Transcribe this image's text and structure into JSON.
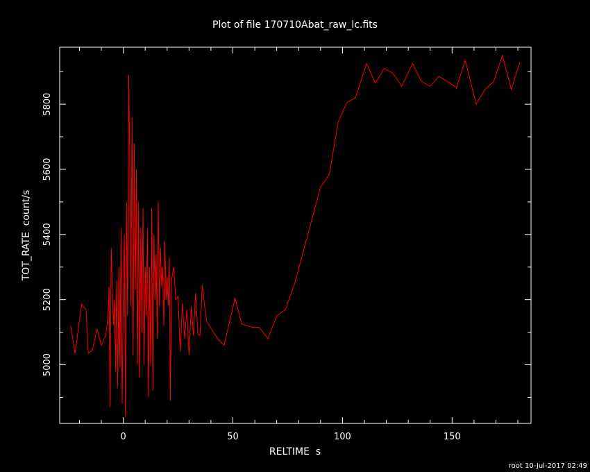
{
  "chart_data": {
    "type": "line",
    "title": "Plot of file 170710Abat_raw_lc.fits",
    "xlabel": "RELTIME  s",
    "ylabel": "TOT_RATE  count/s",
    "footer": "root 10-Jul-2017 02:49",
    "xlim": [
      -29,
      186
    ],
    "ylim": [
      4820,
      5975
    ],
    "x_ticks": [
      0,
      50,
      100,
      150
    ],
    "y_ticks": [
      5000,
      5200,
      5400,
      5600,
      5800
    ],
    "grid": false,
    "line_color": "#ff0000",
    "series": [
      {
        "x": [
          -24,
          -22,
          -19,
          -17,
          -16,
          -14,
          -12,
          -10,
          -8,
          -7,
          -6.5,
          -6,
          -5.5,
          -5,
          -4.5,
          -4,
          -3.5,
          -3,
          -2.5,
          -2,
          -1.5,
          -1,
          -0.5,
          0,
          0.5,
          1,
          1.5,
          2,
          2.5,
          3,
          3.5,
          4,
          4.5,
          5,
          5.5,
          6,
          6.5,
          7,
          7.5,
          8,
          8.5,
          9,
          9.5,
          10,
          10.5,
          11,
          11.5,
          12,
          12.5,
          13,
          13.5,
          14,
          14.5,
          15,
          15.5,
          16,
          16.5,
          17,
          17.5,
          18,
          18.5,
          19,
          19.5,
          20,
          20.5,
          21,
          21.5,
          22,
          23,
          24,
          25,
          26,
          27,
          28,
          29,
          30,
          31,
          32,
          33,
          34,
          35,
          36,
          38,
          43,
          46,
          51,
          54,
          59,
          62,
          66,
          70,
          74,
          78,
          82,
          86,
          90,
          94,
          98,
          102,
          106,
          111,
          115,
          119,
          123,
          127,
          132,
          136,
          140,
          144,
          148,
          152,
          156,
          161,
          165,
          169,
          173,
          177,
          181
        ],
        "values": [
          5120,
          5035,
          5185,
          5170,
          5035,
          5045,
          5110,
          5060,
          5090,
          5145,
          5240,
          4870,
          5360,
          5240,
          5120,
          5200,
          4980,
          5260,
          4930,
          5300,
          4990,
          5420,
          4880,
          5210,
          5400,
          4840,
          5500,
          5150,
          5890,
          5600,
          5180,
          5760,
          5030,
          5680,
          5230,
          5600,
          5000,
          5500,
          4960,
          5420,
          5100,
          5480,
          5000,
          5300,
          5150,
          5420,
          4900,
          5300,
          5000,
          5480,
          4920,
          5400,
          5200,
          5340,
          5080,
          5500,
          5180,
          5360,
          5240,
          5300,
          5120,
          5380,
          5200,
          5270,
          5180,
          5330,
          4890,
          5260,
          5300,
          5200,
          5210,
          5040,
          5190,
          5080,
          5170,
          5030,
          5180,
          5090,
          5220,
          5095,
          5090,
          5245,
          5135,
          5080,
          5060,
          5205,
          5125,
          5115,
          5115,
          5080,
          5150,
          5170,
          5245,
          5345,
          5445,
          5545,
          5585,
          5745,
          5805,
          5820,
          5925,
          5865,
          5910,
          5895,
          5855,
          5925,
          5870,
          5855,
          5885,
          5870,
          5850,
          5935,
          5800,
          5845,
          5870,
          5950,
          5845,
          5930
        ]
      }
    ]
  }
}
